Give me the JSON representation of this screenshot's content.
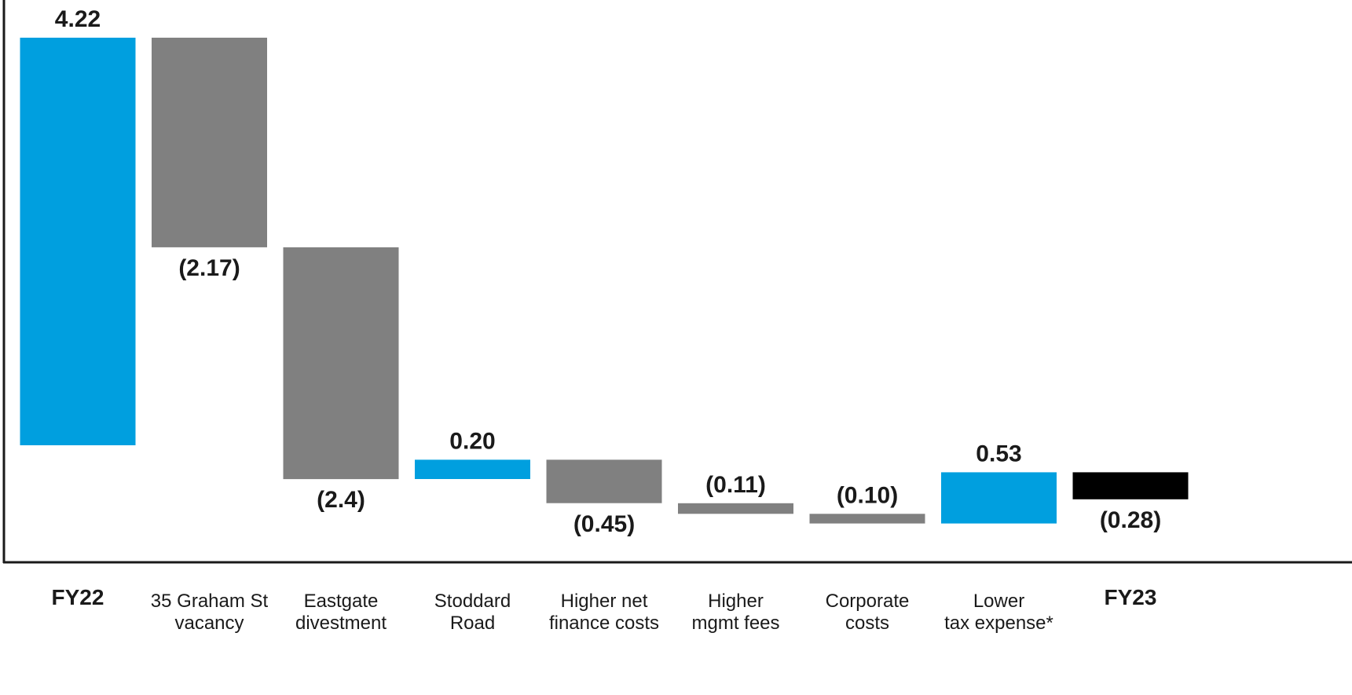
{
  "chart_data": {
    "type": "bar",
    "subtype": "waterfall",
    "title": "",
    "xlabel": "",
    "ylabel": "",
    "grid": false,
    "legend": false,
    "value_axis_shown": false,
    "ylim": [
      -0.4,
      4.42
    ],
    "colors": {
      "increase": "#009fdf",
      "decrease": "#808080",
      "start_total": "#009fdf",
      "end_total": "#000000",
      "axis": "#1a1a1a"
    },
    "steps": [
      {
        "category": [
          "FY22"
        ],
        "label": "4.22",
        "value": 4.22,
        "kind": "start_total",
        "bold_category": true
      },
      {
        "category": [
          "35 Graham St",
          "vacancy"
        ],
        "label": "(2.17)",
        "value": -2.17,
        "kind": "decrease",
        "bold_category": false
      },
      {
        "category": [
          "Eastgate",
          "divestment"
        ],
        "label": "(2.4)",
        "value": -2.4,
        "kind": "decrease",
        "bold_category": false
      },
      {
        "category": [
          "Stoddard",
          "Road"
        ],
        "label": "0.20",
        "value": 0.2,
        "kind": "increase",
        "bold_category": false
      },
      {
        "category": [
          "Higher net",
          "finance costs"
        ],
        "label": "(0.45)",
        "value": -0.45,
        "kind": "decrease",
        "bold_category": false
      },
      {
        "category": [
          "Higher",
          "mgmt fees"
        ],
        "label": "(0.11)",
        "value": -0.11,
        "kind": "decrease",
        "bold_category": false
      },
      {
        "category": [
          "Corporate",
          "costs"
        ],
        "label": "(0.10)",
        "value": -0.1,
        "kind": "decrease",
        "bold_category": false
      },
      {
        "category": [
          "Lower",
          "tax expense*"
        ],
        "label": "0.53",
        "value": 0.53,
        "kind": "increase",
        "bold_category": false
      },
      {
        "category": [
          "FY23"
        ],
        "label": "(0.28)",
        "value": -0.28,
        "kind": "end_total",
        "bold_category": true
      }
    ]
  }
}
